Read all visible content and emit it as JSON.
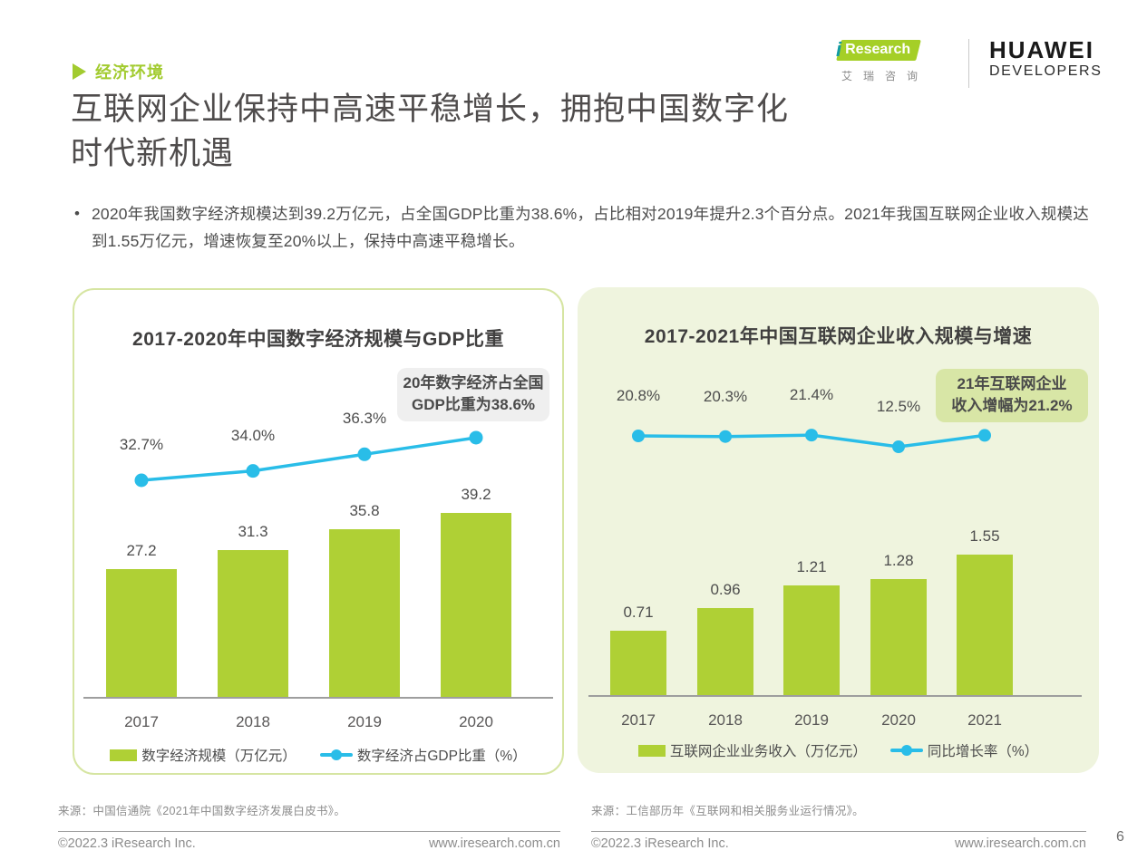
{
  "page": {
    "section_label": "经济环境",
    "title_line1": "互联网企业保持中高速平稳增长，拥抱中国数字化",
    "title_line2": "时代新机遇",
    "bullet_marker": "•",
    "bullet_text": "2020年我国数字经济规模达到39.2万亿元，占全国GDP比重为38.6%，占比相对2019年提升2.3个百分点。2021年我国互联网企业收入规模达到1.55万亿元，增速恢复至20%以上，保持中高速平稳增长。"
  },
  "logos": {
    "iresearch_i": "i",
    "iresearch_en": "Research",
    "iresearch_cn": "艾瑞咨询",
    "huawei_main": "HUAWEI",
    "huawei_sub": "DEVELOPERS"
  },
  "colors": {
    "accent_green": "#AFD035",
    "accent_blue": "#29BDE8",
    "section_green": "#A2CB2F",
    "panel_border": "#D6E5A2",
    "panel_bg_green": "#EFF4DE",
    "callout_gray": "#EFEFEF",
    "callout_green": "#D8E6A6"
  },
  "chart_data": [
    {
      "type": "bar+line",
      "title": "2017-2020年中国数字经济规模与GDP比重",
      "categories": [
        "2017",
        "2018",
        "2019",
        "2020"
      ],
      "series": [
        {
          "name": "数字经济规模（万亿元）",
          "type": "bar",
          "values": [
            27.2,
            31.3,
            35.8,
            39.2
          ],
          "labels": [
            "27.2",
            "31.3",
            "35.8",
            "39.2"
          ],
          "color": "#AFD035"
        },
        {
          "name": "数字经济占GDP比重（%）",
          "type": "line",
          "values": [
            32.7,
            34.0,
            36.3,
            38.6
          ],
          "labels": [
            "32.7%",
            "34.0%",
            "36.3%",
            ""
          ],
          "color": "#29BDE8"
        }
      ],
      "callout_lines": [
        "20年数字经济占全国",
        "GDP比重为38.6%"
      ],
      "legend_position": "bottom",
      "grid": false,
      "bar_axis_range": [
        0,
        45
      ],
      "line_axis_range": [
        30,
        42
      ]
    },
    {
      "type": "bar+line",
      "title": "2017-2021年中国互联网企业收入规模与增速",
      "categories": [
        "2017",
        "2018",
        "2019",
        "2020",
        "2021"
      ],
      "series": [
        {
          "name": "互联网企业业务收入（万亿元）",
          "type": "bar",
          "values": [
            0.71,
            0.96,
            1.21,
            1.28,
            1.55
          ],
          "labels": [
            "0.71",
            "0.96",
            "1.21",
            "1.28",
            "1.55"
          ],
          "color": "#AFD035"
        },
        {
          "name": "同比增长率（%）",
          "type": "line",
          "values": [
            20.8,
            20.3,
            21.4,
            12.5,
            21.2
          ],
          "labels": [
            "20.8%",
            "20.3%",
            "21.4%",
            "12.5%",
            ""
          ],
          "color": "#29BDE8"
        }
      ],
      "callout_lines": [
        "21年互联网企业",
        "收入增幅为21.2%"
      ],
      "legend_position": "bottom",
      "grid": false,
      "bar_axis_range": [
        0,
        2
      ],
      "line_axis_range": [
        10,
        25
      ]
    }
  ],
  "footer": {
    "left": {
      "source": "来源：中国信通院《2021年中国数字经济发展白皮书》。",
      "copyright": "©2022.3 iResearch Inc.",
      "website": "www.iresearch.com.cn"
    },
    "right": {
      "source": "来源：工信部历年《互联网和相关服务业运行情况》。",
      "copyright": "©2022.3 iResearch Inc.",
      "website": "www.iresearch.com.cn"
    },
    "page_number": "6"
  }
}
